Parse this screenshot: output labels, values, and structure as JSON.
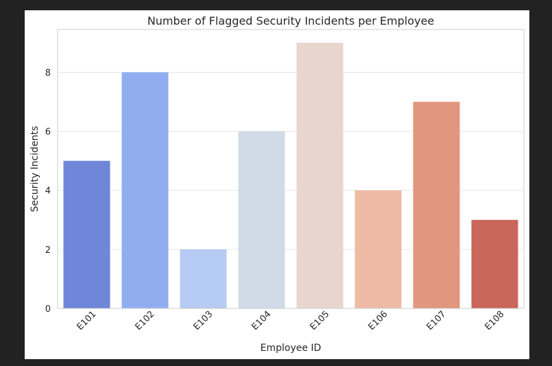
{
  "chart_data": {
    "type": "bar",
    "title": "Number of Flagged Security Incidents per Employee",
    "xlabel": "Employee ID",
    "ylabel": "Security Incidents",
    "categories": [
      "E101",
      "E102",
      "E103",
      "E104",
      "E105",
      "E106",
      "E107",
      "E108"
    ],
    "values": [
      5,
      8,
      2,
      6,
      9,
      4,
      7,
      3
    ],
    "colors": [
      "#6f86d9",
      "#90aeef",
      "#b6cbf3",
      "#d1dbe8",
      "#e8d5cd",
      "#edbba3",
      "#e0977d",
      "#c8675a"
    ],
    "ylim": [
      0,
      9.45
    ],
    "yticks": [
      0,
      2,
      4,
      6,
      8
    ],
    "xtick_rotation": 45,
    "grid": "horizontal",
    "legend": false
  }
}
